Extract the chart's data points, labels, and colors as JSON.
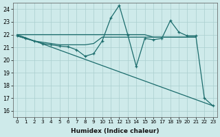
{
  "xlabel": "Humidex (Indice chaleur)",
  "xlim": [
    -0.5,
    23.5
  ],
  "ylim": [
    15.5,
    24.5
  ],
  "yticks": [
    16,
    17,
    18,
    19,
    20,
    21,
    22,
    23,
    24
  ],
  "xticks": [
    0,
    1,
    2,
    3,
    4,
    5,
    6,
    7,
    8,
    9,
    10,
    11,
    12,
    13,
    14,
    15,
    16,
    17,
    18,
    19,
    20,
    21,
    22,
    23
  ],
  "bg_color": "#ceeaea",
  "line_color": "#1a6b6b",
  "grid_color": "#aacece",
  "flat_line_x": [
    0,
    10,
    11,
    13,
    14,
    15,
    16,
    17,
    18,
    19,
    20,
    21
  ],
  "flat_line_y": [
    22.0,
    22.0,
    22.0,
    22.0,
    22.0,
    22.0,
    21.8,
    21.8,
    21.8,
    21.8,
    21.8,
    21.8
  ],
  "main_line_x": [
    0,
    1,
    2,
    3,
    4,
    5,
    6,
    7,
    8,
    9,
    10,
    11,
    12,
    13,
    14,
    15,
    16,
    17,
    18,
    19,
    20,
    21,
    22,
    23
  ],
  "main_line_y": [
    21.9,
    21.7,
    21.5,
    21.3,
    21.2,
    21.1,
    21.05,
    20.8,
    20.3,
    20.5,
    21.5,
    23.3,
    24.3,
    22.0,
    19.5,
    21.7,
    21.6,
    21.7,
    23.1,
    22.2,
    21.9,
    21.9,
    17.0,
    16.4
  ],
  "diag_line_x": [
    0,
    23
  ],
  "diag_line_y": [
    22.0,
    16.4
  ],
  "extra_line_x": [
    0,
    1,
    2,
    3,
    4,
    5,
    6,
    7,
    8,
    9,
    10,
    11,
    12,
    13,
    14,
    15,
    16,
    17,
    18,
    19,
    20,
    21
  ],
  "extra_line_y": [
    21.9,
    21.7,
    21.5,
    21.4,
    21.3,
    21.2,
    21.2,
    21.2,
    21.2,
    21.3,
    21.8,
    21.8,
    21.8,
    21.8,
    21.8,
    21.8,
    21.8,
    21.8,
    21.8,
    21.8,
    21.8,
    21.8
  ]
}
